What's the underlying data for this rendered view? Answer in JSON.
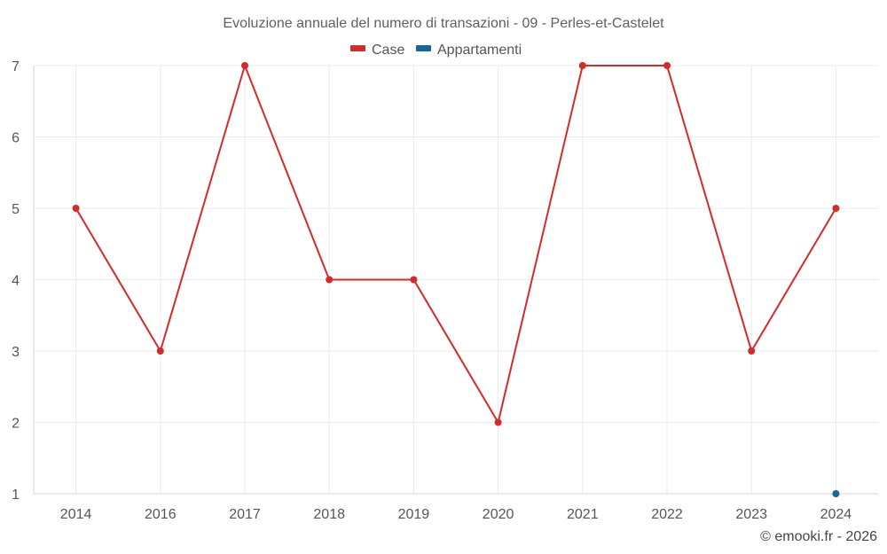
{
  "chart_data": {
    "type": "line",
    "title": "Evoluzione annuale del numero di transazioni - 09 - Perles-et-Castelet",
    "categories": [
      "2014",
      "2016",
      "2017",
      "2018",
      "2019",
      "2020",
      "2021",
      "2022",
      "2023",
      "2024"
    ],
    "series": [
      {
        "name": "Case",
        "color": "#d42a2a",
        "values": [
          5,
          3,
          7,
          4,
          4,
          2,
          7,
          7,
          3,
          5
        ]
      },
      {
        "name": "Appartamenti",
        "color": "#1565a0",
        "values": [
          null,
          null,
          null,
          null,
          null,
          null,
          null,
          null,
          null,
          1
        ]
      }
    ],
    "ylim": [
      1,
      7
    ],
    "yticks": [
      1,
      2,
      3,
      4,
      5,
      6,
      7
    ],
    "xlabel": "",
    "ylabel": "",
    "grid": true,
    "legend_position": "top-center"
  },
  "credit": "© emooki.fr - 2026"
}
